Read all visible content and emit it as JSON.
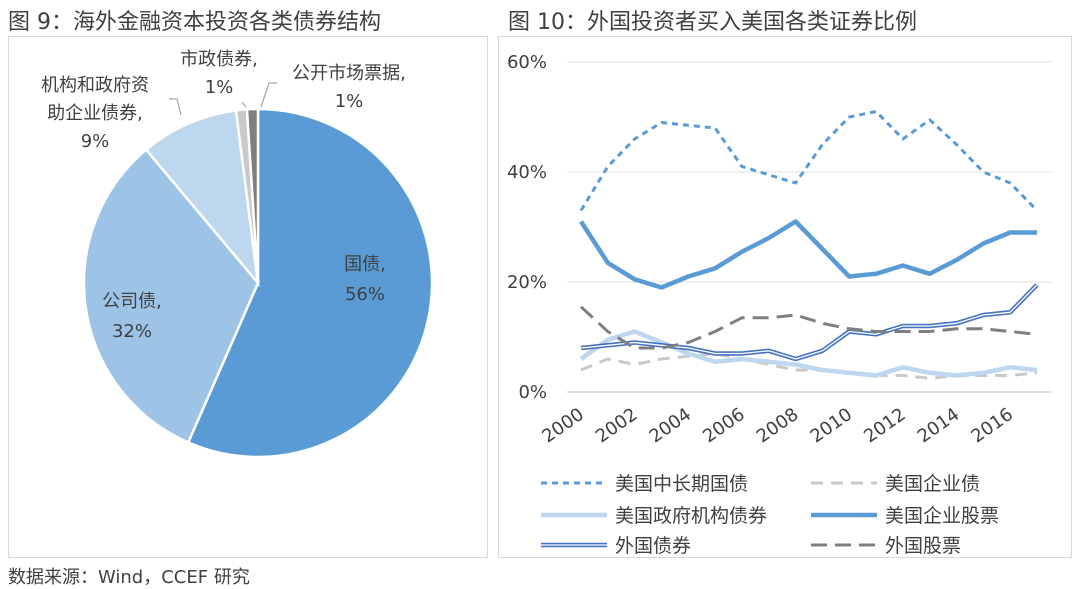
{
  "panels": {
    "left_title": "图 9：海外金融资本投资各类债券结构",
    "right_title": "图 10：外国投资者买入美国各类证券比例"
  },
  "source": "数据来源：Wind，CCEF 研究",
  "chart_data": [
    {
      "type": "pie",
      "title": "",
      "slices": [
        {
          "label": "国债",
          "value": 56,
          "display": "56%",
          "color": "#5b9bd5"
        },
        {
          "label": "公司债",
          "value": 32,
          "display": "32%",
          "color": "#9dc3e6"
        },
        {
          "label": "机构和政府资助企业债券",
          "value": 9,
          "display": "9%",
          "color": "#bdd7ee"
        },
        {
          "label": "市政债券",
          "value": 1,
          "display": "1%",
          "color": "#c9c9c9"
        },
        {
          "label": "公开市场票据",
          "value": 1,
          "display": "1%",
          "color": "#7f7f7f"
        }
      ]
    },
    {
      "type": "line",
      "title": "",
      "xlabel": "",
      "ylabel": "",
      "x": [
        2000,
        2001,
        2002,
        2003,
        2004,
        2005,
        2006,
        2007,
        2008,
        2009,
        2010,
        2011,
        2012,
        2013,
        2014,
        2015,
        2016,
        2017
      ],
      "x_ticks": [
        "2000",
        "2002",
        "2004",
        "2006",
        "2008",
        "2010",
        "2012",
        "2014",
        "2016"
      ],
      "y_ticks": [
        "0%",
        "20%",
        "40%",
        "60%"
      ],
      "ylim": [
        0,
        60
      ],
      "grid": true,
      "legend_position": "bottom",
      "series": [
        {
          "name": "美国中长期国债",
          "color": "#5b9bd5",
          "style": "short-dash",
          "values": [
            33,
            41,
            46,
            49,
            48.5,
            48,
            41,
            39.5,
            38,
            45,
            50,
            51,
            46,
            49.5,
            45,
            40,
            38,
            33
          ]
        },
        {
          "name": "美国企业债",
          "color": "#c9c9c9",
          "style": "dash",
          "values": [
            4,
            6,
            5,
            6,
            6.5,
            7,
            6,
            5,
            4,
            4,
            3.5,
            3,
            3,
            2.5,
            3,
            3,
            3,
            3.5
          ]
        },
        {
          "name": "美国政府机构债券",
          "color": "#bdd7ee",
          "style": "solid-thick",
          "values": [
            6,
            9.5,
            11,
            9,
            7,
            5.5,
            6,
            5.5,
            5,
            4,
            3.5,
            3,
            4.5,
            3.5,
            3,
            3.5,
            4.5,
            4
          ]
        },
        {
          "name": "美国企业股票",
          "color": "#5b9bd5",
          "style": "solid-thick",
          "values": [
            31,
            23.5,
            20.5,
            19,
            21,
            22.5,
            25.5,
            28,
            31,
            26,
            21,
            21.5,
            23,
            21.5,
            24,
            27,
            29,
            29
          ]
        },
        {
          "name": "外国债券",
          "color": "#4472c4",
          "style": "double",
          "values": [
            8,
            8.5,
            9,
            8.5,
            8,
            7,
            7,
            7.5,
            6,
            7.5,
            11,
            10.5,
            12,
            12,
            12.5,
            14,
            14.5,
            19.5
          ]
        },
        {
          "name": "外国股票",
          "color": "#7f7f7f",
          "style": "long-dash",
          "values": [
            15.5,
            11,
            8,
            8,
            9,
            11,
            13.5,
            13.5,
            14,
            12.5,
            11.5,
            11,
            11,
            11,
            11.5,
            11.5,
            11,
            10.5
          ]
        }
      ]
    }
  ]
}
